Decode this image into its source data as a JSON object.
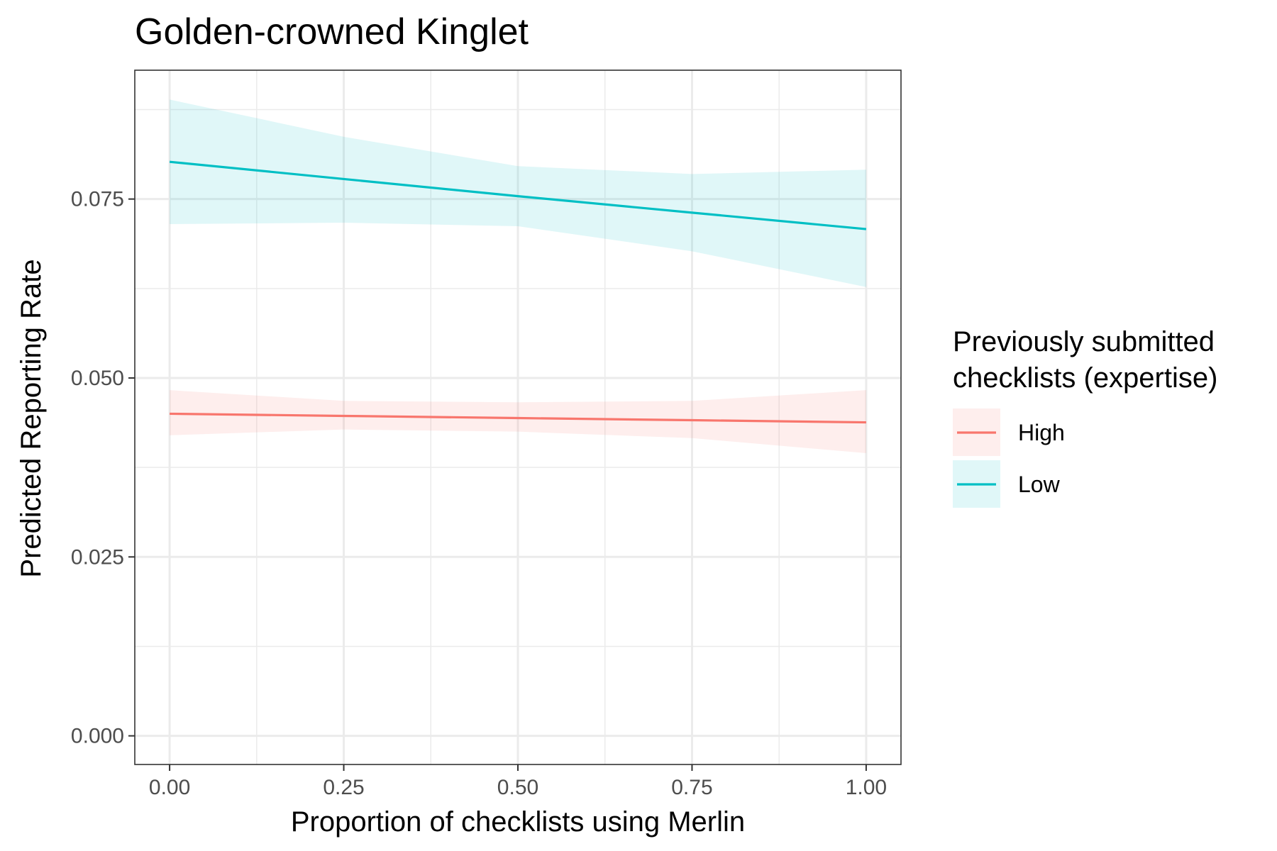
{
  "chart_data": {
    "type": "line",
    "title": "Golden-crowned Kinglet",
    "xlabel": "Proportion of checklists using Merlin",
    "ylabel": "Predicted Reporting Rate",
    "xlim": [
      -0.05,
      1.05
    ],
    "ylim": [
      -0.004,
      0.093
    ],
    "x_ticks": [
      0.0,
      0.25,
      0.5,
      0.75,
      1.0
    ],
    "x_tick_labels": [
      "0.00",
      "0.25",
      "0.50",
      "0.75",
      "1.00"
    ],
    "y_ticks": [
      0.0,
      0.025,
      0.05,
      0.075
    ],
    "y_tick_labels": [
      "0.000",
      "0.025",
      "0.050",
      "0.075"
    ],
    "grid": true,
    "legend": {
      "title_lines": [
        "Previously submitted",
        "checklists (expertise)"
      ],
      "position": "right"
    },
    "series": [
      {
        "name": "High",
        "color": "#F8766D",
        "x": [
          0.0,
          0.25,
          0.5,
          0.75,
          1.0
        ],
        "y": [
          0.045,
          0.0447,
          0.0444,
          0.0441,
          0.0438
        ],
        "ci_lower": [
          0.042,
          0.0428,
          0.0425,
          0.0416,
          0.0395
        ],
        "ci_upper": [
          0.0483,
          0.0468,
          0.0466,
          0.0468,
          0.0483
        ]
      },
      {
        "name": "Low",
        "color": "#00BFC4",
        "x": [
          0.0,
          0.25,
          0.5,
          0.75,
          1.0
        ],
        "y": [
          0.0802,
          0.0778,
          0.0754,
          0.0731,
          0.0708
        ],
        "ci_lower": [
          0.0715,
          0.0717,
          0.0712,
          0.0677,
          0.0627
        ],
        "ci_upper": [
          0.0889,
          0.0837,
          0.0796,
          0.0785,
          0.0791
        ]
      }
    ]
  }
}
